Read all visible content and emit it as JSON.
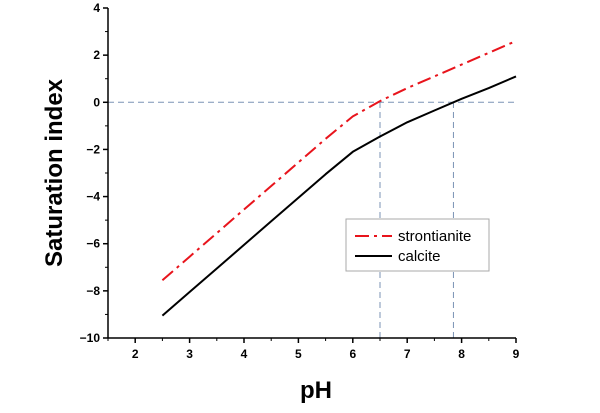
{
  "chart_data": {
    "type": "line",
    "xlabel": "pH",
    "ylabel": "Saturation index",
    "xlim": [
      1.5,
      9
    ],
    "ylim": [
      -10,
      4
    ],
    "xticks": [
      2,
      3,
      4,
      5,
      6,
      7,
      8,
      9
    ],
    "yticks": [
      -10,
      -8,
      -6,
      -4,
      -2,
      0,
      2,
      4
    ],
    "grid": false,
    "legend_position": "lower-right",
    "series": [
      {
        "name": "strontianite",
        "color": "#e8141c",
        "style": "dash-dot",
        "x": [
          2.5,
          3,
          3.5,
          4,
          4.5,
          5,
          5.5,
          6,
          6.5,
          7,
          7.5,
          8,
          8.5,
          9
        ],
        "y": [
          -7.55,
          -6.55,
          -5.55,
          -4.55,
          -3.55,
          -2.55,
          -1.55,
          -0.6,
          0.05,
          0.6,
          1.1,
          1.6,
          2.1,
          2.6
        ]
      },
      {
        "name": "calcite",
        "color": "#000000",
        "style": "solid",
        "x": [
          2.5,
          3,
          3.5,
          4,
          4.5,
          5,
          5.5,
          6,
          6.5,
          7,
          7.5,
          8,
          8.5,
          9
        ],
        "y": [
          -9.05,
          -8.05,
          -7.05,
          -6.05,
          -5.05,
          -4.05,
          -3.05,
          -2.1,
          -1.45,
          -0.85,
          -0.35,
          0.15,
          0.6,
          1.1
        ]
      }
    ],
    "reference_lines": [
      {
        "axis": "y",
        "value": 0
      },
      {
        "axis": "x",
        "value": 6.5,
        "from": -10,
        "to": 0
      },
      {
        "axis": "x",
        "value": 7.85,
        "from": -10,
        "to": 0
      }
    ]
  }
}
